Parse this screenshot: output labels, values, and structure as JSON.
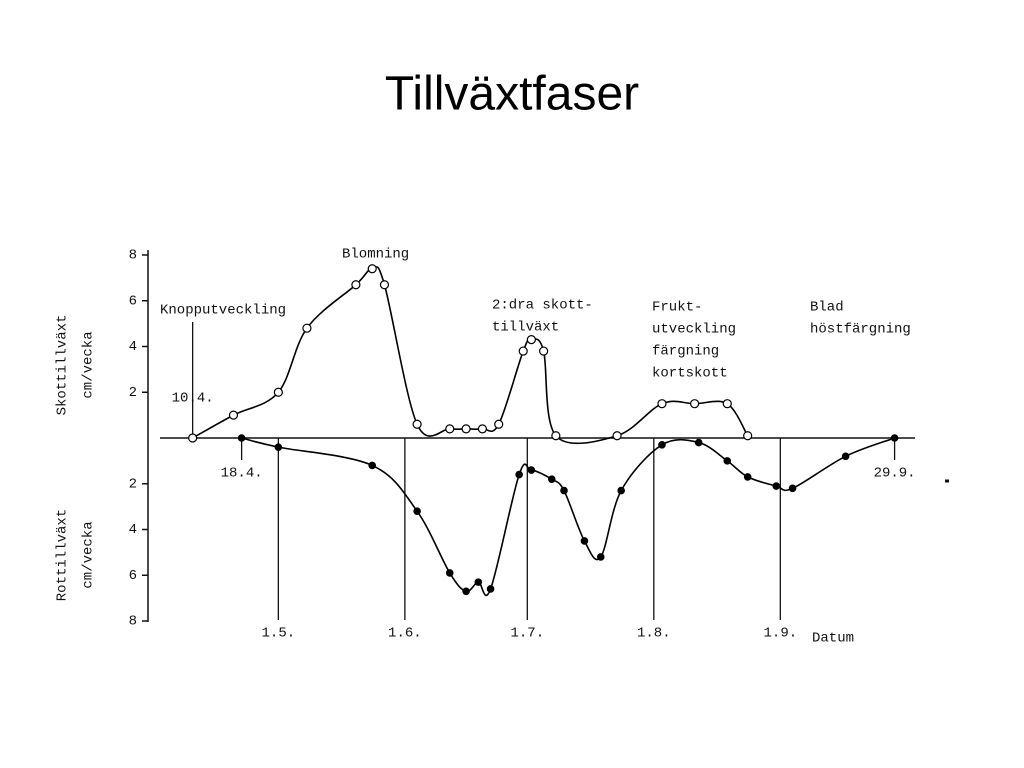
{
  "title": "Tillväxtfaser",
  "chart_data": [
    {
      "type": "line",
      "marker": "open",
      "color": "#000000",
      "y_label": [
        "Skottillväxt",
        "cm/vecka"
      ],
      "xlim": [
        92,
        277
      ],
      "ylim": [
        0,
        8
      ],
      "yticks": [
        2,
        4,
        6,
        8
      ],
      "x": [
        100,
        110,
        121,
        128,
        140,
        144,
        147,
        155,
        163,
        167,
        171,
        175,
        181,
        183,
        186,
        189,
        204,
        215,
        223,
        231,
        236
      ],
      "values": [
        0,
        1.0,
        2.0,
        4.8,
        6.7,
        7.4,
        6.7,
        0.6,
        0.4,
        0.4,
        0.4,
        0.6,
        3.8,
        4.3,
        3.8,
        0.1,
        0.1,
        1.5,
        1.5,
        1.5,
        0.1
      ],
      "phases": [
        [
          "Knopputveckling"
        ],
        [
          "Blomning"
        ],
        [
          "2:dra skott-",
          "tillväxt"
        ],
        [
          "Frukt-",
          "utveckling",
          "färgning",
          "kortskott"
        ],
        [
          "Blad",
          "höstfärgning"
        ]
      ],
      "date_marks": [
        {
          "label": "10.4.",
          "x": 100
        }
      ]
    },
    {
      "type": "line",
      "marker": "filled",
      "color": "#000000",
      "inverted": true,
      "y_label": [
        "Rottillväxt",
        "cm/vecka"
      ],
      "x_label": "Datum",
      "xlim": [
        92,
        277
      ],
      "ylim": [
        0,
        8
      ],
      "yticks": [
        2,
        4,
        6,
        8
      ],
      "xticks": [
        {
          "value": 121,
          "label": "1.5."
        },
        {
          "value": 152,
          "label": "1.6."
        },
        {
          "value": 182,
          "label": "1.7."
        },
        {
          "value": 213,
          "label": "1.8."
        },
        {
          "value": 244,
          "label": "1.9."
        }
      ],
      "x": [
        112,
        121,
        144,
        155,
        163,
        167,
        170,
        173,
        180,
        183,
        188,
        191,
        196,
        200,
        205,
        215,
        224,
        231,
        236,
        243,
        247,
        260,
        272
      ],
      "values": [
        0,
        0.4,
        1.2,
        3.2,
        5.9,
        6.7,
        6.3,
        6.6,
        1.6,
        1.4,
        1.8,
        2.3,
        4.5,
        5.2,
        2.3,
        0.3,
        0.2,
        1.0,
        1.7,
        2.1,
        2.2,
        0.8,
        0
      ],
      "date_marks": [
        {
          "label": "18.4.",
          "x": 112
        },
        {
          "label": "29.9.",
          "x": 272
        }
      ]
    }
  ]
}
